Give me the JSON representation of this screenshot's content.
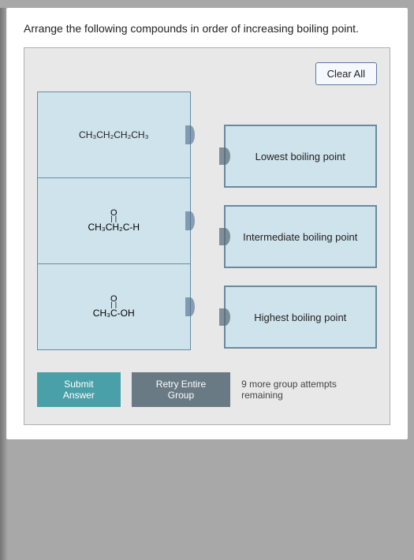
{
  "question": "Arrange the following compounds in order of increasing boiling point.",
  "buttons": {
    "clear_all": "Clear All",
    "submit": "Submit Answer",
    "retry": "Retry Entire Group"
  },
  "compounds": [
    {
      "formula_plain": "CH₃CH₂CH₂CH₃",
      "has_carbonyl": false
    },
    {
      "formula_left": "CH₃CH₂",
      "formula_right": "C-H",
      "has_carbonyl": true
    },
    {
      "formula_left": "CH₃",
      "formula_right": "C-OH",
      "has_carbonyl": true
    }
  ],
  "targets": [
    {
      "label": "Lowest boiling point"
    },
    {
      "label": "Intermediate boiling point"
    },
    {
      "label": "Highest boiling point"
    }
  ],
  "attempts_text": "9 more group attempts remaining",
  "colors": {
    "page_bg": "#a8a8a8",
    "panel_bg": "#e8e8e8",
    "box_bg": "#cfe3ec",
    "box_border": "#6a8aa0",
    "submit_bg": "#4aa0a8",
    "retry_bg": "#6a7a85"
  }
}
